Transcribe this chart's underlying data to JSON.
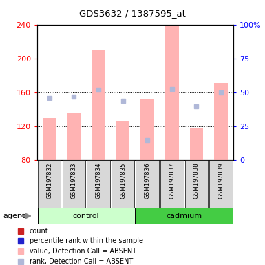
{
  "title": "GDS3632 / 1387595_at",
  "samples": [
    "GSM197832",
    "GSM197833",
    "GSM197834",
    "GSM197835",
    "GSM197836",
    "GSM197837",
    "GSM197838",
    "GSM197839"
  ],
  "bar_values": [
    130,
    136,
    210,
    127,
    153,
    240,
    118,
    172
  ],
  "rank_values": [
    46,
    47,
    52,
    44,
    15,
    53,
    40,
    50
  ],
  "bar_color_absent": "#ffb3b3",
  "rank_color_absent": "#b0b8d8",
  "ylim_left": [
    80,
    240
  ],
  "ylim_right": [
    0,
    100
  ],
  "yticks_left": [
    80,
    120,
    160,
    200,
    240
  ],
  "yticks_right": [
    0,
    25,
    50,
    75,
    100
  ],
  "yticklabels_right": [
    "0",
    "25",
    "50",
    "75",
    "100%"
  ],
  "agent_label": "agent",
  "group_ranges": [
    {
      "start": 0,
      "end": 3,
      "label": "control",
      "color": "#ccffcc"
    },
    {
      "start": 4,
      "end": 7,
      "label": "cadmium",
      "color": "#44cc44"
    }
  ],
  "legend_items": [
    {
      "color": "#cc2222",
      "label": "count"
    },
    {
      "color": "#2222cc",
      "label": "percentile rank within the sample"
    },
    {
      "color": "#ffb3b3",
      "label": "value, Detection Call = ABSENT"
    },
    {
      "color": "#b0b8d8",
      "label": "rank, Detection Call = ABSENT"
    }
  ]
}
